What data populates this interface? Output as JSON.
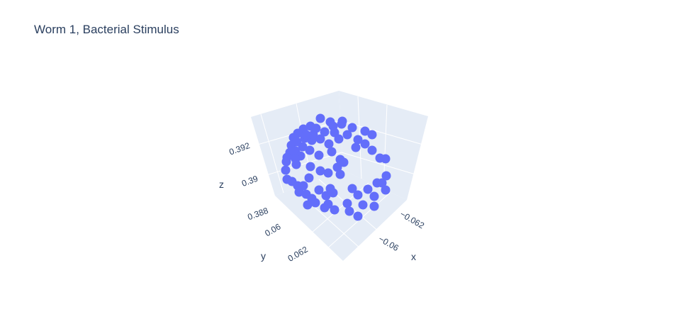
{
  "chart_data": {
    "type": "scatter3d",
    "title": "Worm 1, Bacterial Stimulus",
    "xlabel": "x",
    "ylabel": "y",
    "zlabel": "z",
    "xticks": [
      "−0.062",
      "−0.06"
    ],
    "yticks": [
      "0.06",
      "0.062"
    ],
    "zticks": [
      "0.388",
      "0.39",
      "0.392"
    ],
    "marker_color": "#636efa",
    "background_color": "#e5ecf6",
    "grid": true,
    "note": "3D scatter of many neuron positions arranged in a ring-like shape"
  }
}
